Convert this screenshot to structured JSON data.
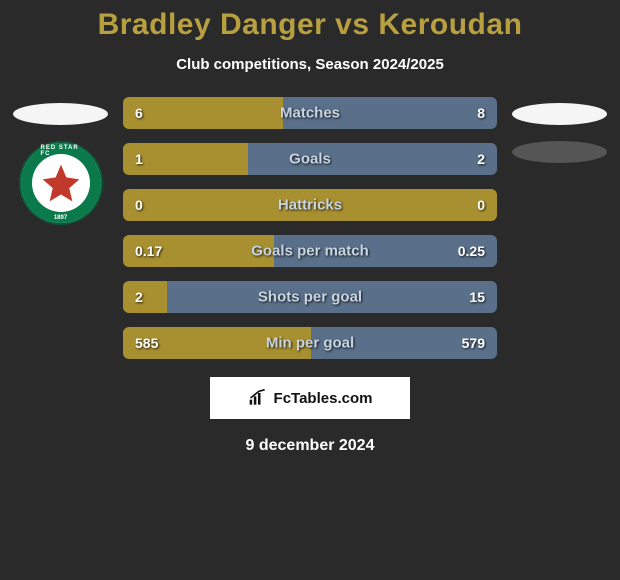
{
  "title": "Bradley Danger vs Keroudan",
  "subtitle": "Club competitions, Season 2024/2025",
  "colors": {
    "background": "#2a2a2a",
    "title": "#b8a040",
    "left_bar": "#a89030",
    "right_bar": "#5a708a",
    "bar_label": "#c8d4e0",
    "value_text": "#ffffff"
  },
  "left_badge": {
    "ring_color": "#0a7a4a",
    "star_color": "#c0392b",
    "text_top": "RED STAR FC",
    "text_bot": "1897"
  },
  "stats": [
    {
      "label": "Matches",
      "left_val": "6",
      "right_val": "8",
      "left_pct": 42.9
    },
    {
      "label": "Goals",
      "left_val": "1",
      "right_val": "2",
      "left_pct": 33.3
    },
    {
      "label": "Hattricks",
      "left_val": "0",
      "right_val": "0",
      "left_pct": 100,
      "mono": true
    },
    {
      "label": "Goals per match",
      "left_val": "0.17",
      "right_val": "0.25",
      "left_pct": 40.5
    },
    {
      "label": "Shots per goal",
      "left_val": "2",
      "right_val": "15",
      "left_pct": 11.8
    },
    {
      "label": "Min per goal",
      "left_val": "585",
      "right_val": "579",
      "left_pct": 50.3
    }
  ],
  "footer": {
    "site": "FcTables.com",
    "date": "9 december 2024"
  }
}
